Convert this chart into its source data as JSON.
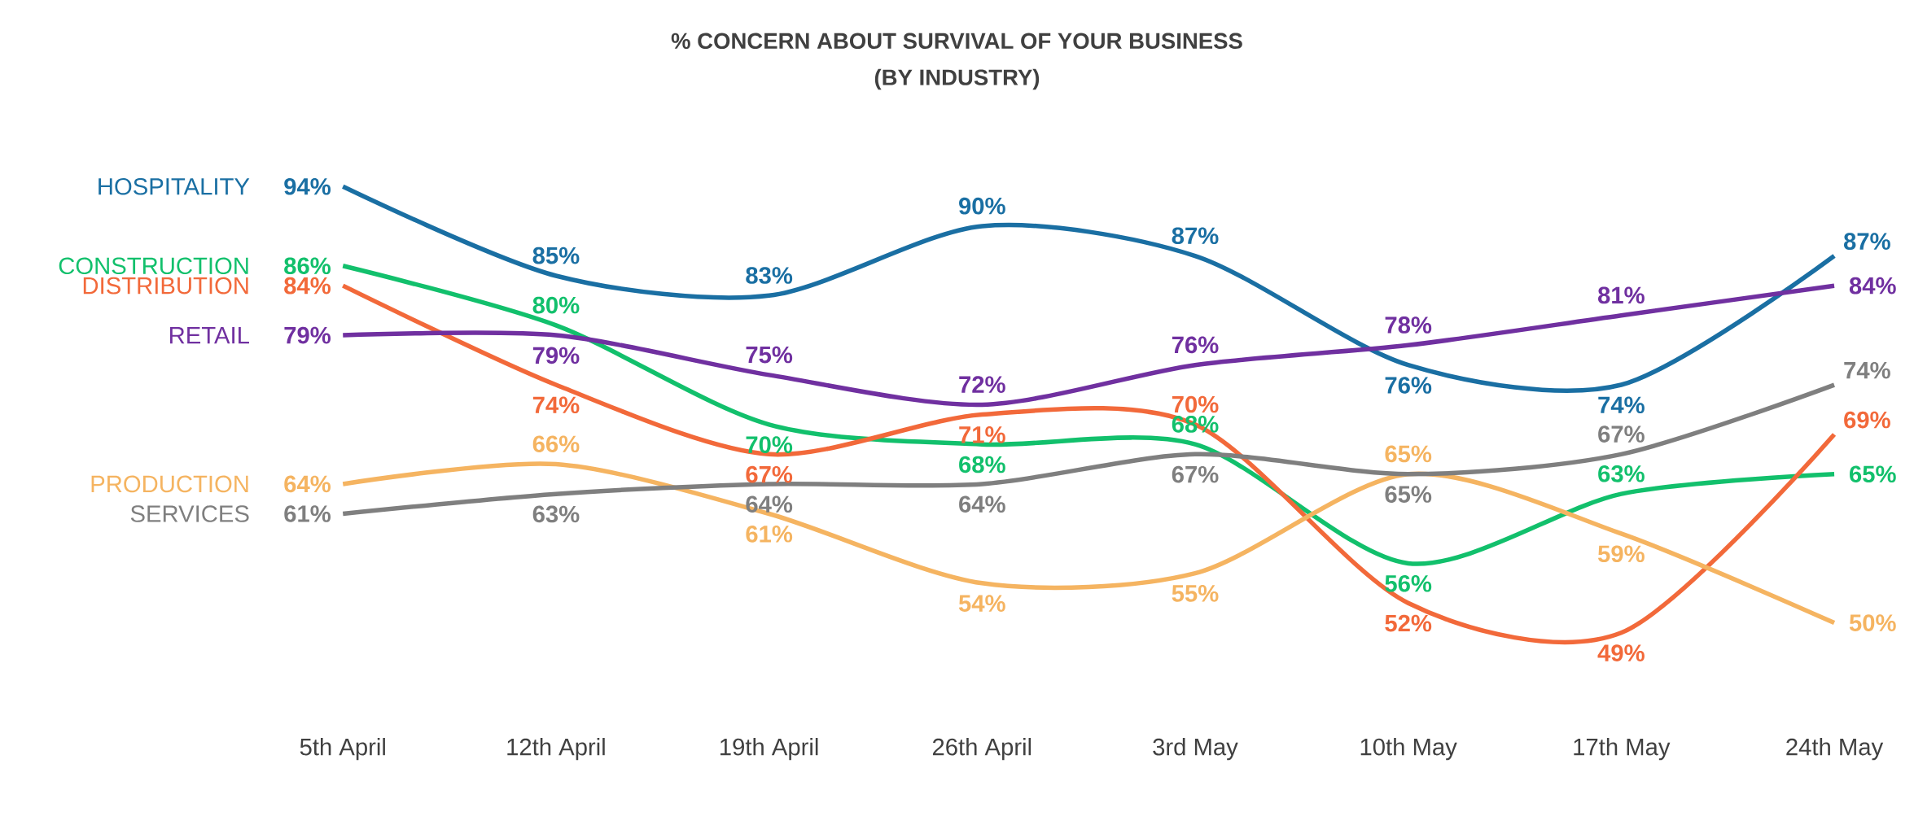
{
  "chart_data": {
    "type": "line",
    "title": "% CONCERN ABOUT SURVIVAL OF YOUR BUSINESS",
    "subtitle": "(BY INDUSTRY)",
    "categories": [
      "5th April",
      "12th April",
      "19th April",
      "26th April",
      "3rd May",
      "10th May",
      "17th May",
      "24th May"
    ],
    "marker": "none",
    "line_style": "solid",
    "series": [
      {
        "name": "HOSPITALITY",
        "color": "#1a6fa3",
        "values": [
          94,
          85,
          83,
          90,
          87,
          76,
          74,
          87
        ],
        "value_labels": [
          "94%",
          "85%",
          "83%",
          "90%",
          "87%",
          "76%",
          "74%",
          "87%"
        ]
      },
      {
        "name": "CONSTRUCTION",
        "color": "#12c06c",
        "values": [
          86,
          80,
          70,
          68,
          68,
          56,
          63,
          65
        ],
        "value_labels": [
          "86%",
          "80%",
          "70%",
          "68%",
          "68%",
          "56%",
          "63%",
          "65%"
        ]
      },
      {
        "name": "DISTRIBUTION",
        "color": "#f2693a",
        "values": [
          84,
          74,
          67,
          71,
          70,
          52,
          49,
          69
        ],
        "value_labels": [
          "84%",
          "74%",
          "67%",
          "71%",
          "70%",
          "52%",
          "49%",
          "69%"
        ]
      },
      {
        "name": "RETAIL",
        "color": "#7030a0",
        "values": [
          79,
          79,
          75,
          72,
          76,
          78,
          81,
          84
        ],
        "value_labels": [
          "79%",
          "79%",
          "75%",
          "72%",
          "76%",
          "78%",
          "81%",
          "84%"
        ]
      },
      {
        "name": "PRODUCTION",
        "color": "#f5b461",
        "values": [
          64,
          66,
          61,
          54,
          55,
          65,
          59,
          50
        ],
        "value_labels": [
          "64%",
          "66%",
          "61%",
          "54%",
          "55%",
          "65%",
          "59%",
          "50%"
        ]
      },
      {
        "name": "SERVICES",
        "color": "#7f7f7f",
        "values": [
          61,
          63,
          64,
          64,
          67,
          65,
          67,
          74
        ],
        "value_labels": [
          "61%",
          "63%",
          "64%",
          "64%",
          "67%",
          "65%",
          "67%",
          "74%"
        ]
      }
    ]
  }
}
